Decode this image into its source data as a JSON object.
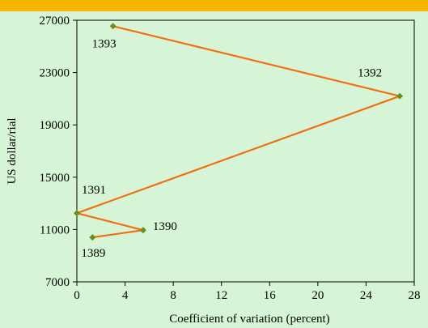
{
  "colors": {
    "background": "#d6f5d6",
    "top_band": "#f7b500",
    "line": "#f07010",
    "marker": "#6b8e23"
  },
  "chart_data": {
    "type": "scatter",
    "xlabel": "Coefficient of variation (percent)",
    "ylabel": "US dollar/rial",
    "xlim": [
      0,
      28
    ],
    "ylim": [
      7000,
      27000
    ],
    "x_ticks": [
      0,
      4,
      8,
      12,
      16,
      20,
      24,
      28
    ],
    "y_ticks": [
      7000,
      11000,
      15000,
      19000,
      23000,
      27000
    ],
    "grid": false,
    "series": [
      {
        "points": [
          {
            "label": "1389",
            "x": 1.3,
            "y": 10400
          },
          {
            "label": "1390",
            "x": 5.5,
            "y": 10950
          },
          {
            "label": "1391",
            "x": 0.0,
            "y": 12250
          },
          {
            "label": "1392",
            "x": 26.8,
            "y": 21200
          },
          {
            "label": "1393",
            "x": 3.0,
            "y": 26550
          }
        ]
      }
    ]
  }
}
